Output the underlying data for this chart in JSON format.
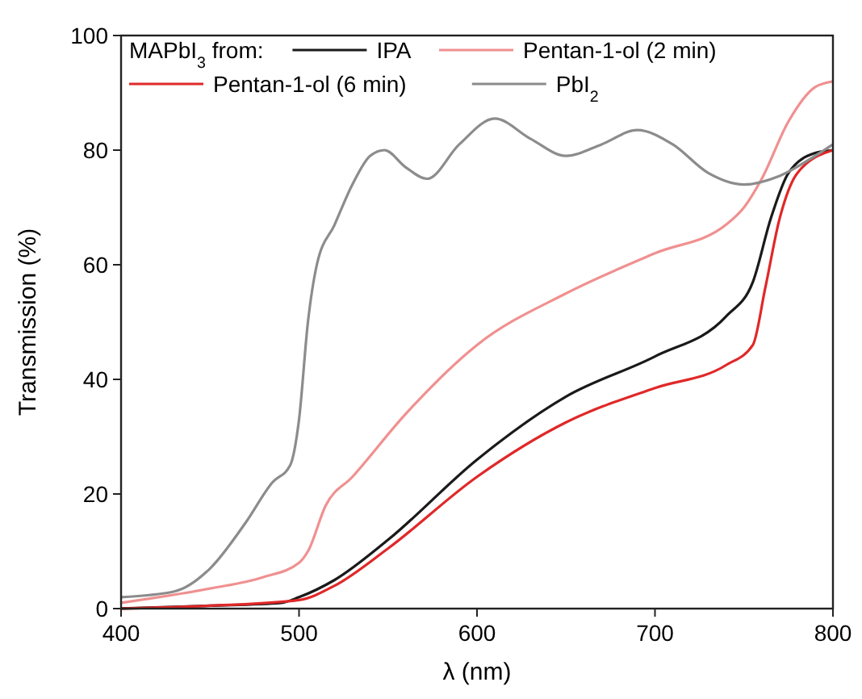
{
  "chart_data": {
    "type": "line",
    "xlabel": "λ (nm)",
    "ylabel": "Transmission (%)",
    "legend_title": "MAPbI$_{3}$ from:",
    "legend": "top left",
    "grid": false,
    "line_style": "solid",
    "marker": "none",
    "xlim": [
      400,
      800
    ],
    "xticks": [
      400,
      500,
      600,
      700,
      800
    ],
    "ylim": [
      0,
      100
    ],
    "yticks": [
      0,
      20,
      40,
      60,
      80,
      100
    ],
    "series": [
      {
        "name": "IPA",
        "color": "#1a1a1a",
        "x": [
          400,
          450,
          490,
          500,
          520,
          550,
          600,
          650,
          700,
          740,
          755,
          765,
          775,
          790,
          800
        ],
        "values": [
          0,
          0.5,
          1,
          2,
          5,
          12,
          26,
          37,
          44,
          51,
          57,
          68,
          76,
          79.5,
          80
        ]
      },
      {
        "name": "Pentan-1-ol (2 min)",
        "color": "#f09090",
        "x": [
          400,
          450,
          480,
          500,
          505,
          515,
          530,
          560,
          600,
          650,
          700,
          740,
          750,
          760,
          775,
          790,
          800
        ],
        "values": [
          1,
          3.5,
          5.5,
          8,
          10,
          18,
          23,
          34,
          46,
          55,
          62,
          67,
          70,
          75,
          85,
          91,
          92
        ]
      },
      {
        "name": "Pentan-1-ol (6 min)",
        "color": "#e02828",
        "x": [
          400,
          450,
          500,
          520,
          550,
          600,
          650,
          700,
          740,
          755,
          762,
          770,
          780,
          800
        ],
        "values": [
          0,
          0.5,
          1.5,
          4,
          10.5,
          23,
          32.5,
          38.5,
          42.5,
          46,
          56,
          68,
          76,
          80
        ]
      },
      {
        "name": "PbI$_{2}$",
        "color": "#8c8c8c",
        "x": [
          400,
          430,
          450,
          470,
          485,
          495,
          500,
          505,
          510,
          520,
          530,
          540,
          548,
          560,
          572,
          590,
          610,
          630,
          650,
          670,
          690,
          710,
          730,
          750,
          770,
          790,
          800
        ],
        "values": [
          2,
          3,
          7,
          15,
          22,
          25,
          33,
          50,
          60,
          67,
          74,
          79,
          80,
          77,
          75,
          81,
          85.5,
          82,
          79,
          81,
          83.5,
          81,
          76,
          74,
          75.5,
          79,
          81
        ]
      }
    ]
  }
}
